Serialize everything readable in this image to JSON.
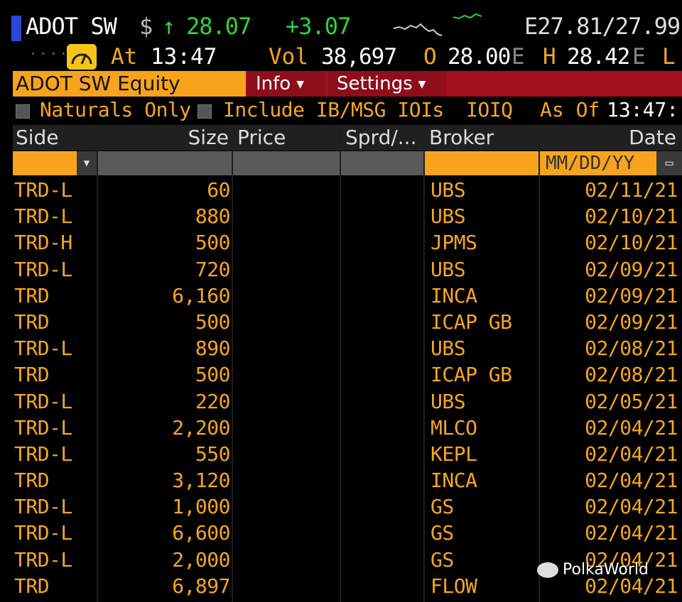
{
  "header": {
    "ticker": "ADOT SW",
    "currency": "$",
    "last_price": "28.07",
    "change": "+3.07",
    "bid_ask": "E27.81/27.99",
    "at_label": "At",
    "time": "13:47",
    "vol_label": "Vol",
    "volume": "38,697",
    "open_label": "O",
    "open": "28.00",
    "open_src": "E",
    "high_label": "H",
    "high": "28.42",
    "high_src": "E",
    "low_label": "L"
  },
  "toolbar": {
    "security": "ADOT SW Equity",
    "info_label": "Info",
    "settings_label": "Settings"
  },
  "filters": {
    "naturals_only": "Naturals Only",
    "include_ib": "Include IB/MSG IOIs",
    "ioiq": "IOIQ",
    "as_of_label": "As Of",
    "as_of_value": "13:47:"
  },
  "grid": {
    "columns": [
      "Side",
      "Size",
      "Price",
      "Sprd/...",
      "Broker",
      "Date"
    ],
    "date_placeholder": "MM/DD/YY",
    "rows": [
      {
        "side": "TRD-L",
        "size": "60",
        "broker": "UBS",
        "date": "02/11/21"
      },
      {
        "side": "TRD-L",
        "size": "880",
        "broker": "UBS",
        "date": "02/10/21"
      },
      {
        "side": "TRD-H",
        "size": "500",
        "broker": "JPMS",
        "date": "02/10/21"
      },
      {
        "side": "TRD-L",
        "size": "720",
        "broker": "UBS",
        "date": "02/09/21"
      },
      {
        "side": "TRD",
        "size": "6,160",
        "broker": "INCA",
        "date": "02/09/21"
      },
      {
        "side": "TRD",
        "size": "500",
        "broker": "ICAP GB",
        "date": "02/09/21"
      },
      {
        "side": "TRD-L",
        "size": "890",
        "broker": "UBS",
        "date": "02/08/21"
      },
      {
        "side": "TRD",
        "size": "500",
        "broker": "ICAP GB",
        "date": "02/08/21"
      },
      {
        "side": "TRD-L",
        "size": "220",
        "broker": "UBS",
        "date": "02/05/21"
      },
      {
        "side": "TRD-L",
        "size": "2,200",
        "broker": "MLCO",
        "date": "02/04/21"
      },
      {
        "side": "TRD-L",
        "size": "550",
        "broker": "KEPL",
        "date": "02/04/21"
      },
      {
        "side": "TRD",
        "size": "3,120",
        "broker": "INCA",
        "date": "02/04/21"
      },
      {
        "side": "TRD-L",
        "size": "1,000",
        "broker": "GS",
        "date": "02/04/21"
      },
      {
        "side": "TRD-L",
        "size": "6,600",
        "broker": "GS",
        "date": "02/04/21"
      },
      {
        "side": "TRD-L",
        "size": "2,000",
        "broker": "GS",
        "date": "02/04/21"
      },
      {
        "side": "TRD",
        "size": "6,897",
        "broker": "FLOW",
        "date": "02/04/21"
      }
    ]
  },
  "watermark": "PolkaWorld",
  "colors": {
    "amber": "#f5a623",
    "green": "#2fd33a",
    "bar_red": "#a3101e",
    "security_orange": "#f7a41c"
  }
}
